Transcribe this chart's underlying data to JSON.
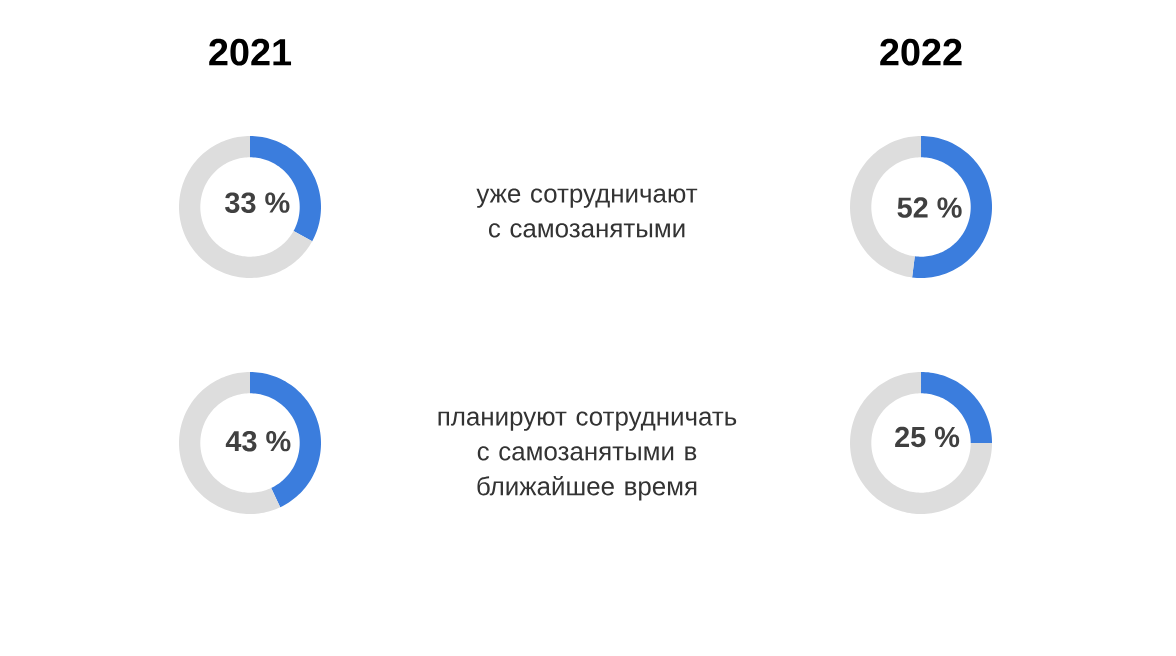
{
  "chart_data": [
    {
      "type": "donut",
      "title": "2021",
      "categories": [
        null,
        null
      ],
      "values": [
        33,
        67
      ],
      "colors": [
        "#3b7ddd",
        "#dddddd"
      ],
      "value_labels": [
        "33 %",
        null
      ]
    },
    {
      "type": "donut",
      "title": "2022",
      "categories": [
        null,
        null
      ],
      "values": [
        52,
        48
      ],
      "colors": [
        "#3b7ddd",
        "#dddddd"
      ],
      "value_labels": [
        "52 %",
        null
      ]
    },
    {
      "type": "donut",
      "categories": [
        null,
        null
      ],
      "values": [
        43,
        57
      ],
      "colors": [
        "#3b7ddd",
        "#dddddd"
      ],
      "value_labels": [
        "43 %",
        null
      ]
    },
    {
      "type": "donut",
      "categories": [
        null,
        null
      ],
      "values": [
        25,
        75
      ],
      "colors": [
        "#3b7ddd",
        "#dddddd"
      ],
      "value_labels": [
        "25 %",
        null
      ]
    },
    {
      "type": "other",
      "annotations": [
        "уже сотрудничают с самозанятыми",
        "планируют сотрудничать с самозанятыми в ближайшее время"
      ]
    }
  ]
}
